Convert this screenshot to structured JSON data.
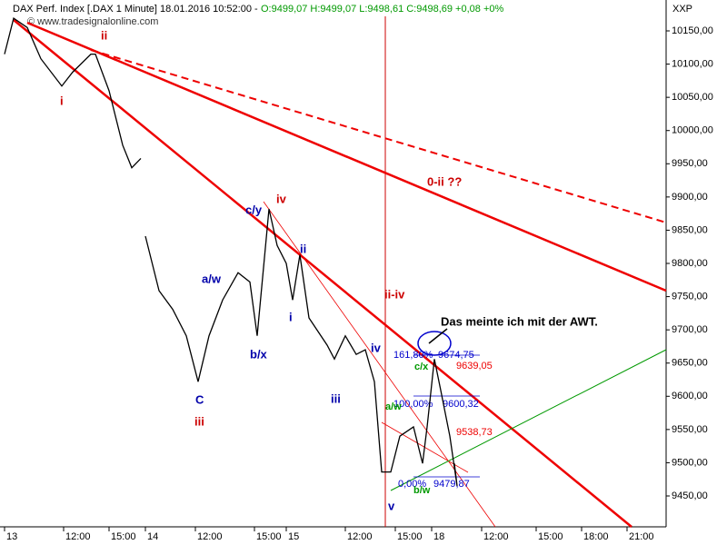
{
  "chart_data": {
    "type": "line",
    "title": "DAX Perf. Index [.DAX  1 Minute] 18.01.2016 10:52:00 -",
    "subtitle": "O:9499,07 H:9499,07 L:9498,61 C:9498,69 +0,08 +0%",
    "watermark": "© www.tradesignalonline.com",
    "axis_code": "XXP",
    "x": [
      5,
      15,
      30,
      45,
      68,
      80,
      100,
      105,
      120,
      135,
      145,
      155,
      157,
      160,
      175,
      190,
      205,
      218,
      230,
      245,
      262,
      275,
      283,
      296,
      305,
      315,
      322,
      330,
      340,
      360,
      368,
      380,
      392,
      402,
      412,
      420,
      430,
      440,
      455,
      465,
      470,
      478,
      485,
      495,
      503,
      500
    ],
    "series": [
      {
        "name": "DAX",
        "color": "#000000",
        "values": [
          10115,
          10169,
          10155,
          10108,
          10067,
          10088,
          10115,
          10115,
          10060,
          9978,
          9944,
          9958,
          null,
          9841,
          9759,
          9731,
          9691,
          9622,
          9691,
          9745,
          9786,
          9772,
          9691,
          9882,
          9827,
          9800,
          9745,
          9813,
          9718,
          9677,
          9656,
          9691,
          9663,
          9670,
          9622,
          9486,
          9486,
          9540,
          9554,
          9499,
          9554,
          9656,
          9609,
          9540,
          9465,
          9499
        ]
      }
    ],
    "xlim": [
      0,
      733
    ],
    "ylim": [
      9403.5,
      10196.5
    ],
    "xticks": [
      {
        "value": 5,
        "label": "13"
      },
      {
        "value": 70,
        "label": "12:00"
      },
      {
        "value": 120,
        "label": "15:00"
      },
      {
        "value": 160,
        "label": "14"
      },
      {
        "value": 215,
        "label": "12:00"
      },
      {
        "value": 280,
        "label": "15:00"
      },
      {
        "value": 315,
        "label": "15"
      },
      {
        "value": 380,
        "label": "12:00"
      },
      {
        "value": 435,
        "label": "15:00"
      },
      {
        "value": 475,
        "label": "18"
      },
      {
        "value": 530,
        "label": "12:00"
      },
      {
        "value": 590,
        "label": "15:00"
      },
      {
        "value": 640,
        "label": "18:00"
      },
      {
        "value": 690,
        "label": "21:00"
      }
    ],
    "yticks": [
      {
        "value": 9450,
        "label": "9450,00"
      },
      {
        "value": 9500,
        "label": "9500,00"
      },
      {
        "value": 9550,
        "label": "9550,00"
      },
      {
        "value": 9600,
        "label": "9600,00"
      },
      {
        "value": 9650,
        "label": "9650,00"
      },
      {
        "value": 9700,
        "label": "9700,00"
      },
      {
        "value": 9750,
        "label": "9750,00"
      },
      {
        "value": 9800,
        "label": "9800,00"
      },
      {
        "value": 9850,
        "label": "9850,00"
      },
      {
        "value": 9900,
        "label": "9900,00"
      },
      {
        "value": 9950,
        "label": "9950,00"
      },
      {
        "value": 10000,
        "label": "10000,00"
      },
      {
        "value": 10050,
        "label": "10050,00"
      },
      {
        "value": 10100,
        "label": "10100,00"
      },
      {
        "value": 10150,
        "label": "10150,00"
      }
    ],
    "grid": false,
    "annotations": [
      "i",
      "ii",
      "iii",
      "C",
      "a/w",
      "b/x",
      "c/y",
      "iv",
      "ii",
      "i",
      "iii",
      "iv",
      "ii-iv",
      "v",
      "0-ii ??",
      "Das meinte ich mit der AWT.",
      "161,80%",
      "9674,75",
      "9639,05",
      "c/x",
      "100,00%",
      "9600,32",
      "a/w",
      "9538,73",
      "0,00%",
      "9479,87",
      "b/w"
    ]
  }
}
